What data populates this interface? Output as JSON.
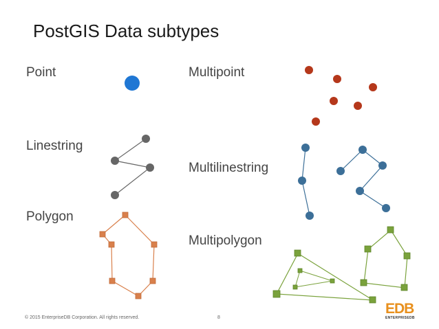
{
  "slide": {
    "title": "PostGIS Data subtypes",
    "labels": {
      "point": "Point",
      "multipoint": "Multipoint",
      "linestring": "Linestring",
      "multilinestring": "Multilinestring",
      "polygon": "Polygon",
      "multipolygon": "Multipolygon"
    },
    "footer": "© 2015 EnterpriseDB Corporation. All rights reserved.",
    "page_number": "8",
    "logo": {
      "mark": "EDB",
      "subtitle": "ENTERPRISEDB"
    }
  },
  "colors": {
    "point": "#1f77d4",
    "multipoint": "#b5381b",
    "linestring": "#666666",
    "multilinestring": "#3c6f98",
    "polygon": "#d9804c",
    "multipolygon": "#7aa23c",
    "logo": "#e8901e"
  }
}
